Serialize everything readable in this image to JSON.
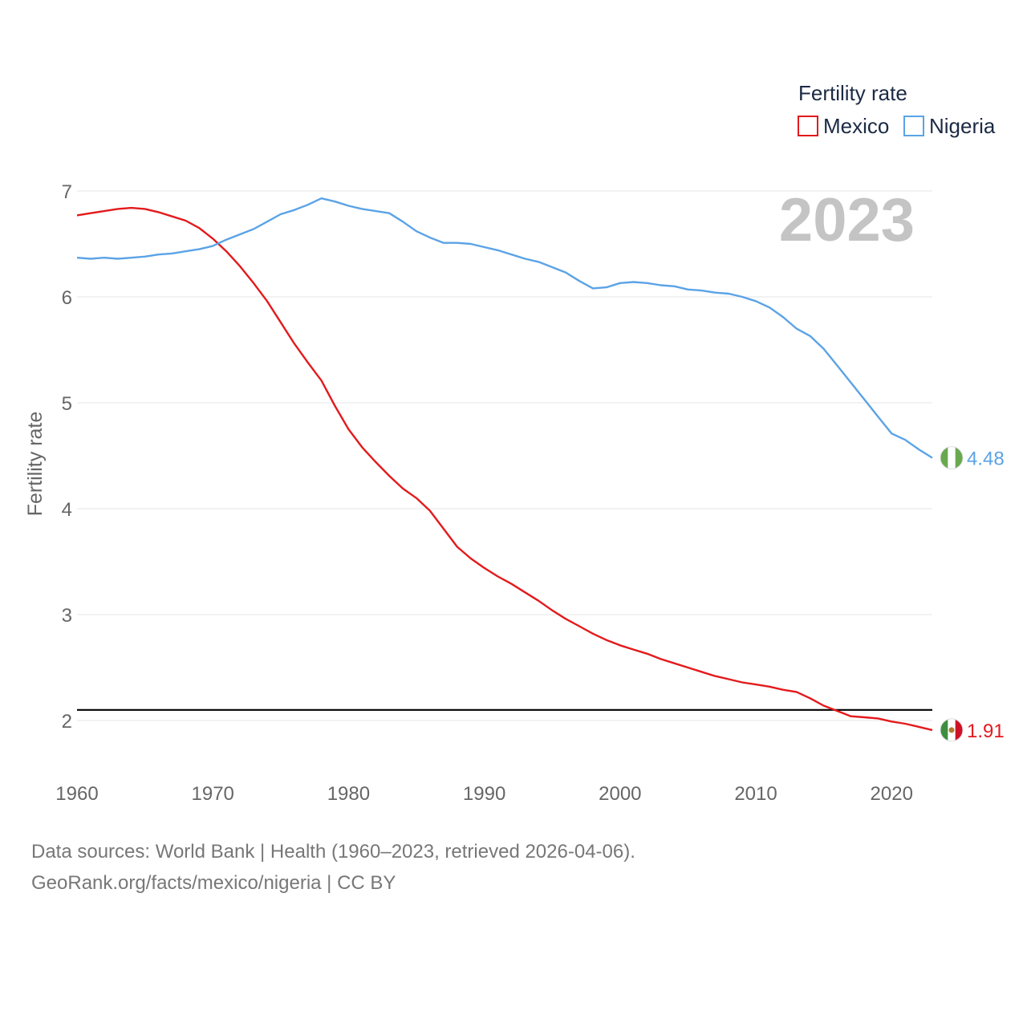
{
  "chart_data": {
    "type": "line",
    "title": "",
    "year_label": "2023",
    "xlabel": "",
    "ylabel": "Fertility rate",
    "xlim": [
      1960,
      2023
    ],
    "ylim": [
      1.5,
      7.0
    ],
    "x_ticks": [
      1960,
      1970,
      1980,
      1990,
      2000,
      2010,
      2020
    ],
    "y_ticks": [
      2,
      3,
      4,
      5,
      6,
      7
    ],
    "grid": true,
    "legend": {
      "title": "Fertility rate",
      "placement": "top-right",
      "entries": [
        "Mexico",
        "Nigeria"
      ]
    },
    "reference_line": {
      "value": 2.1,
      "color": "#000000"
    },
    "x": [
      1960,
      1961,
      1962,
      1963,
      1964,
      1965,
      1966,
      1967,
      1968,
      1969,
      1970,
      1971,
      1972,
      1973,
      1974,
      1975,
      1976,
      1977,
      1978,
      1979,
      1980,
      1981,
      1982,
      1983,
      1984,
      1985,
      1986,
      1987,
      1988,
      1989,
      1990,
      1991,
      1992,
      1993,
      1994,
      1995,
      1996,
      1997,
      1998,
      1999,
      2000,
      2001,
      2002,
      2003,
      2004,
      2005,
      2006,
      2007,
      2008,
      2009,
      2010,
      2011,
      2012,
      2013,
      2014,
      2015,
      2016,
      2017,
      2018,
      2019,
      2020,
      2021,
      2022,
      2023
    ],
    "series": [
      {
        "name": "Mexico",
        "color": "#e31a1c",
        "end_label": "1.91",
        "flag_colors": [
          "#3e8e41",
          "#ffffff",
          "#ce1126"
        ],
        "values": [
          6.77,
          6.79,
          6.81,
          6.83,
          6.84,
          6.83,
          6.8,
          6.76,
          6.72,
          6.65,
          6.55,
          6.43,
          6.29,
          6.13,
          5.96,
          5.76,
          5.56,
          5.38,
          5.21,
          4.97,
          4.75,
          4.58,
          4.44,
          4.31,
          4.19,
          4.1,
          3.98,
          3.81,
          3.64,
          3.53,
          3.44,
          3.36,
          3.29,
          3.21,
          3.13,
          3.04,
          2.96,
          2.89,
          2.82,
          2.76,
          2.71,
          2.67,
          2.63,
          2.58,
          2.54,
          2.5,
          2.46,
          2.42,
          2.39,
          2.36,
          2.34,
          2.32,
          2.29,
          2.27,
          2.21,
          2.14,
          2.09,
          2.04,
          2.03,
          2.02,
          1.99,
          1.97,
          1.94,
          1.91
        ]
      },
      {
        "name": "Nigeria",
        "color": "#5ba3e6",
        "end_label": "4.48",
        "flag_colors": [
          "#6aa84f",
          "#ffffff",
          "#6aa84f"
        ],
        "values": [
          6.37,
          6.36,
          6.37,
          6.36,
          6.37,
          6.38,
          6.4,
          6.41,
          6.43,
          6.45,
          6.48,
          6.54,
          6.59,
          6.64,
          6.71,
          6.78,
          6.82,
          6.87,
          6.93,
          6.9,
          6.86,
          6.83,
          6.81,
          6.79,
          6.71,
          6.62,
          6.56,
          6.51,
          6.51,
          6.5,
          6.47,
          6.44,
          6.4,
          6.36,
          6.33,
          6.28,
          6.23,
          6.15,
          6.08,
          6.09,
          6.13,
          6.14,
          6.13,
          6.11,
          6.1,
          6.07,
          6.06,
          6.04,
          6.03,
          6.0,
          5.96,
          5.9,
          5.81,
          5.7,
          5.63,
          5.51,
          5.35,
          5.19,
          5.03,
          4.87,
          4.71,
          4.65,
          4.56,
          4.48
        ]
      }
    ]
  },
  "footer": {
    "sources": "Data sources: World Bank | Health (1960–2023, retrieved 2026-04-06).",
    "attribution": "GeoRank.org/facts/mexico/nigeria | CC BY"
  }
}
